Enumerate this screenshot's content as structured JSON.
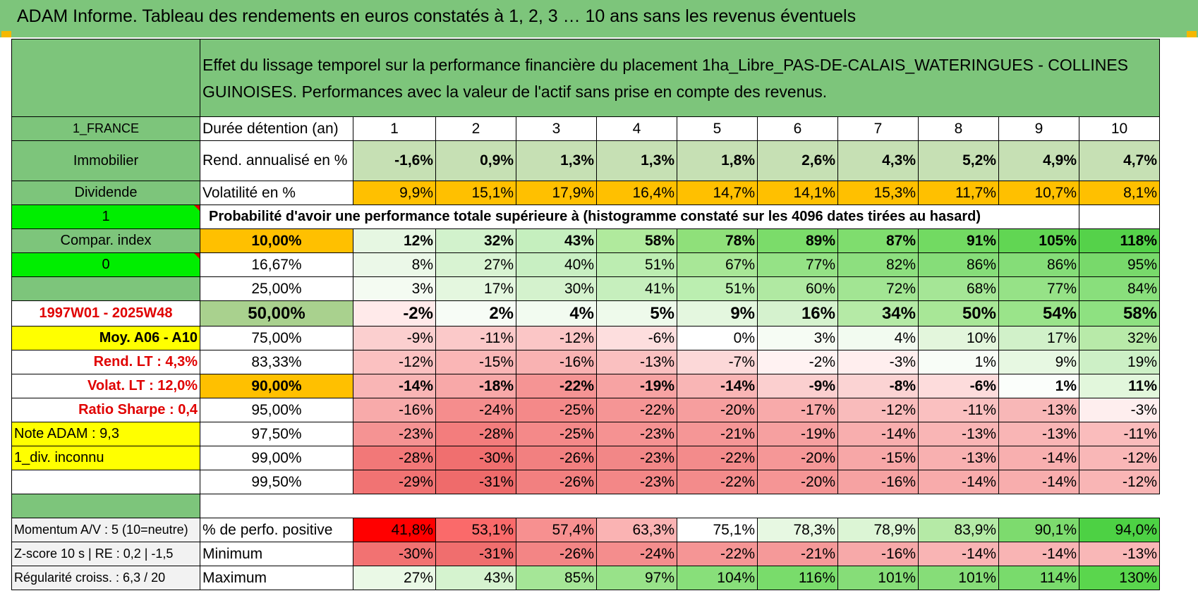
{
  "title": "ADAM Informe. Tableau des rendements en euros constatés à 1, 2, 3 … 10 ans sans les revenus éventuels",
  "colors": {
    "green_header": "#7dc57b",
    "orange": "#ffc000",
    "yellow": "#ffff00",
    "bright_green": "#00ee00",
    "red_text": "#e00000"
  },
  "header": {
    "asset_name": "1ha_Libre_PAS-DE-CALAIS_WATERINGUES - COLLINES GUINOISES",
    "description": "Effet du lissage temporel sur la performance financière du placement 1ha_Libre_PAS-DE-CALAIS_WATERINGUES - COLLINES GUINOISES. Performances avec la valeur de l'actif sans prise en compte des revenus."
  },
  "left_panel": {
    "country": "1_FRANCE",
    "category": "Immobilier",
    "type": "Dividende",
    "flag1": "1",
    "compar_index": "Compar. index",
    "flag0": "0",
    "blank": "",
    "period": "1997W01 - 2025W48",
    "moy": "Moy. A06 - A10",
    "rend_lt": "Rend. LT :    4,3%",
    "volat_lt": "Volat. LT :    12,0%",
    "sharpe": "Ratio Sharpe :     0,4",
    "note": "Note ADAM : 9,3",
    "div": "1_div. inconnu",
    "momentum": "Momentum A/V : 5 (10=neutre)",
    "zscore": "Z-score 10 s | RE : 0,2 | -1,5",
    "regularite": "Régularité croiss. : 6,3 / 20"
  },
  "table": {
    "duration_label": "Durée détention (an)",
    "years": [
      "1",
      "2",
      "3",
      "4",
      "5",
      "6",
      "7",
      "8",
      "9",
      "10"
    ],
    "rend_label": "Rend. annualisé en %",
    "rend": [
      "-1,6%",
      "0,9%",
      "1,3%",
      "1,3%",
      "1,8%",
      "2,6%",
      "4,3%",
      "5,2%",
      "4,9%",
      "4,7%"
    ],
    "vol_label": "Volatilité en %",
    "vol": [
      "9,9%",
      "15,1%",
      "17,9%",
      "16,4%",
      "14,7%",
      "14,1%",
      "15,3%",
      "11,7%",
      "10,7%",
      "8,1%"
    ],
    "prob_title": "Probabilité d'avoir une performance totale supérieure à (histogramme constaté sur les 4096 dates tirées au hasard)",
    "quantiles": [
      {
        "label": "10,00%",
        "values": [
          "12%",
          "32%",
          "43%",
          "58%",
          "78%",
          "89%",
          "87%",
          "91%",
          "105%",
          "118%"
        ]
      },
      {
        "label": "16,67%",
        "values": [
          "8%",
          "27%",
          "40%",
          "51%",
          "67%",
          "77%",
          "82%",
          "86%",
          "86%",
          "95%"
        ]
      },
      {
        "label": "25,00%",
        "values": [
          "3%",
          "17%",
          "30%",
          "41%",
          "51%",
          "60%",
          "72%",
          "68%",
          "77%",
          "84%"
        ]
      },
      {
        "label": "50,00%",
        "values": [
          "-2%",
          "2%",
          "4%",
          "5%",
          "9%",
          "16%",
          "34%",
          "50%",
          "54%",
          "58%"
        ]
      },
      {
        "label": "75,00%",
        "values": [
          "-9%",
          "-11%",
          "-12%",
          "-6%",
          "0%",
          "3%",
          "4%",
          "10%",
          "17%",
          "32%"
        ]
      },
      {
        "label": "83,33%",
        "values": [
          "-12%",
          "-15%",
          "-16%",
          "-13%",
          "-7%",
          "-2%",
          "-3%",
          "1%",
          "9%",
          "19%"
        ]
      },
      {
        "label": "90,00%",
        "values": [
          "-14%",
          "-18%",
          "-22%",
          "-19%",
          "-14%",
          "-9%",
          "-8%",
          "-6%",
          "1%",
          "11%"
        ]
      },
      {
        "label": "95,00%",
        "values": [
          "-16%",
          "-24%",
          "-25%",
          "-22%",
          "-20%",
          "-17%",
          "-12%",
          "-11%",
          "-13%",
          "-3%"
        ]
      },
      {
        "label": "97,50%",
        "values": [
          "-23%",
          "-28%",
          "-25%",
          "-23%",
          "-21%",
          "-19%",
          "-14%",
          "-13%",
          "-13%",
          "-11%"
        ]
      },
      {
        "label": "99,00%",
        "values": [
          "-28%",
          "-30%",
          "-26%",
          "-23%",
          "-22%",
          "-20%",
          "-15%",
          "-13%",
          "-14%",
          "-12%"
        ]
      },
      {
        "label": "99,50%",
        "values": [
          "-29%",
          "-31%",
          "-26%",
          "-23%",
          "-22%",
          "-20%",
          "-16%",
          "-14%",
          "-14%",
          "-12%"
        ]
      }
    ],
    "positive_label": "% de perfo. positive",
    "positive": [
      "41,8%",
      "53,1%",
      "57,4%",
      "63,3%",
      "75,1%",
      "78,3%",
      "78,9%",
      "83,9%",
      "90,1%",
      "94,0%"
    ],
    "min_label": "Minimum",
    "min": [
      "-30%",
      "-31%",
      "-26%",
      "-24%",
      "-22%",
      "-21%",
      "-16%",
      "-14%",
      "-14%",
      "-13%"
    ],
    "max_label": "Maximum",
    "max": [
      "27%",
      "43%",
      "85%",
      "97%",
      "104%",
      "116%",
      "101%",
      "101%",
      "114%",
      "130%"
    ]
  }
}
